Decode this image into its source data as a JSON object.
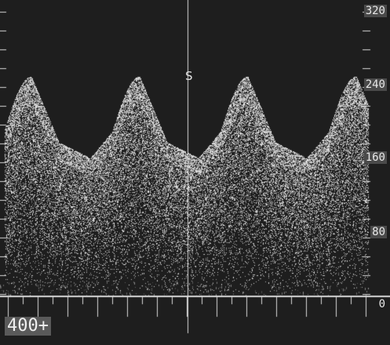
{
  "display": {
    "marker": "S",
    "range_readout": "400+",
    "scale": {
      "labels": [
        "320",
        "240",
        "160",
        "80",
        "0"
      ],
      "values": [
        320,
        240,
        160,
        80,
        0
      ]
    }
  },
  "colors": {
    "background": "#1e1e1e",
    "signal": "#cfcfcf",
    "grid": "#d8d8d8",
    "label_bg": "#4a4a4a"
  }
}
